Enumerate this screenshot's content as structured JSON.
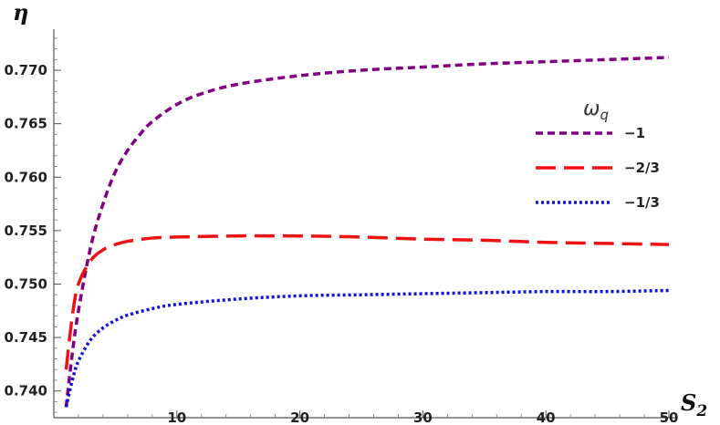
{
  "chart_data": {
    "type": "line",
    "title": "",
    "xlabel": "S",
    "xlabel_sub": "2",
    "ylabel": "η",
    "xlim": [
      0,
      50
    ],
    "ylim": [
      0.7375,
      0.7735
    ],
    "x_ticks": [
      10,
      20,
      30,
      40,
      50
    ],
    "y_ticks": [
      0.74,
      0.745,
      0.75,
      0.755,
      0.76,
      0.765,
      0.77
    ],
    "y_tick_labels": [
      "0.740",
      "0.745",
      "0.750",
      "0.755",
      "0.760",
      "0.765",
      "0.770"
    ],
    "grid": false,
    "legend": {
      "title": "ω",
      "title_sub": "q",
      "placement": "right"
    },
    "series": [
      {
        "name": "−1",
        "color": "#800080",
        "dash": "short-dash",
        "points": [
          [
            1,
            0.7385
          ],
          [
            1.5,
            0.7435
          ],
          [
            2,
            0.7475
          ],
          [
            3,
            0.7535
          ],
          [
            4,
            0.7575
          ],
          [
            5,
            0.7605
          ],
          [
            6,
            0.7625
          ],
          [
            7,
            0.764
          ],
          [
            8,
            0.7652
          ],
          [
            10,
            0.7668
          ],
          [
            12,
            0.7678
          ],
          [
            15,
            0.7687
          ],
          [
            20,
            0.7695
          ],
          [
            25,
            0.77
          ],
          [
            30,
            0.7703
          ],
          [
            35,
            0.7706
          ],
          [
            40,
            0.7708
          ],
          [
            45,
            0.771
          ],
          [
            50,
            0.7712
          ]
        ]
      },
      {
        "name": "−2/3",
        "color": "#ee1111",
        "dash": "long-dash",
        "points": [
          [
            1,
            0.742
          ],
          [
            1.5,
            0.747
          ],
          [
            2,
            0.75
          ],
          [
            3,
            0.7522
          ],
          [
            4,
            0.7532
          ],
          [
            5,
            0.7537
          ],
          [
            6,
            0.754
          ],
          [
            8,
            0.7543
          ],
          [
            10,
            0.7544
          ],
          [
            15,
            0.7545
          ],
          [
            20,
            0.7545
          ],
          [
            25,
            0.7544
          ],
          [
            30,
            0.7542
          ],
          [
            35,
            0.7541
          ],
          [
            40,
            0.7539
          ],
          [
            45,
            0.7538
          ],
          [
            50,
            0.7537
          ]
        ]
      },
      {
        "name": "−1/3",
        "color": "#1111dd",
        "dash": "dotted",
        "points": [
          [
            1,
            0.7385
          ],
          [
            1.5,
            0.741
          ],
          [
            2,
            0.7428
          ],
          [
            3,
            0.7448
          ],
          [
            4,
            0.7459
          ],
          [
            5,
            0.7466
          ],
          [
            6,
            0.7471
          ],
          [
            8,
            0.7477
          ],
          [
            10,
            0.7481
          ],
          [
            15,
            0.7486
          ],
          [
            20,
            0.7489
          ],
          [
            25,
            0.749
          ],
          [
            30,
            0.7491
          ],
          [
            35,
            0.7492
          ],
          [
            40,
            0.7493
          ],
          [
            45,
            0.7493
          ],
          [
            50,
            0.7494
          ]
        ]
      }
    ]
  }
}
